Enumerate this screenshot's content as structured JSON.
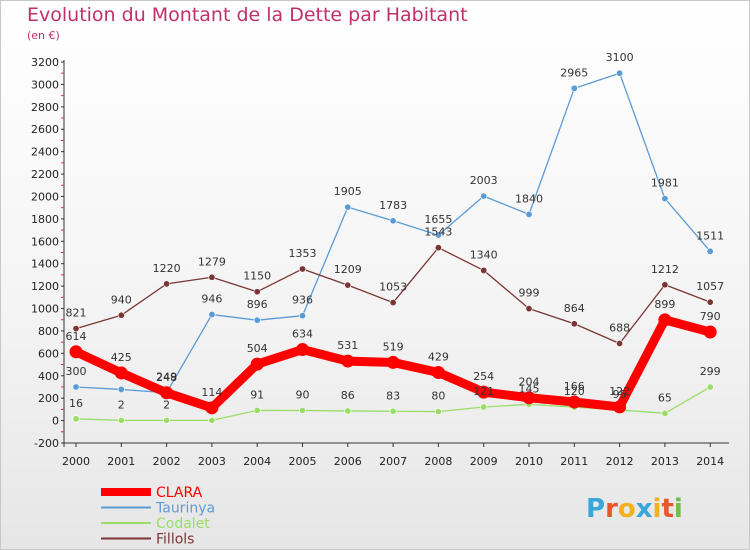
{
  "chart_data": {
    "type": "line",
    "title": "Evolution du Montant de la Dette par Habitant",
    "subtitle": "(en €)",
    "x": [
      "2000",
      "2001",
      "2002",
      "2003",
      "2004",
      "2005",
      "2006",
      "2007",
      "2008",
      "2009",
      "2010",
      "2011",
      "2012",
      "2013",
      "2014"
    ],
    "yticks": [
      -200,
      0,
      200,
      400,
      600,
      800,
      1000,
      1200,
      1400,
      1600,
      1800,
      2000,
      2200,
      2400,
      2600,
      2800,
      3000,
      3200
    ],
    "ylim": [
      -200,
      3200
    ],
    "grid": false,
    "legend_position": "bottom-left",
    "series": [
      {
        "name": "CLARA",
        "color": "#ff0000",
        "values": [
          614,
          425,
          248,
          114,
          504,
          634,
          531,
          519,
          429,
          254,
          204,
          166,
          122,
          899,
          790
        ],
        "labels": [
          "614",
          "425",
          "248",
          "114",
          "504",
          "634",
          "531",
          "519",
          "429",
          "254",
          "204",
          "166",
          "122",
          "899",
          "790"
        ]
      },
      {
        "name": "Taurinya",
        "color": "#5b9bd5",
        "values": [
          300,
          278,
          249,
          946,
          896,
          936,
          1905,
          1783,
          1655,
          2003,
          1840,
          2965,
          3100,
          1981,
          1511
        ],
        "labels": [
          "300",
          "",
          "249",
          "946",
          "896",
          "936",
          "1905",
          "1783",
          "1655",
          "2003",
          "1840",
          "2965",
          "3100",
          "1981",
          "1511"
        ]
      },
      {
        "name": "Codalet",
        "color": "#99dd66",
        "values": [
          16,
          2,
          2,
          2,
          91,
          90,
          86,
          83,
          80,
          121,
          145,
          120,
          95,
          65,
          299
        ],
        "labels": [
          "16",
          "2",
          "2",
          "",
          "91",
          "90",
          "86",
          "83",
          "80",
          "121",
          "145",
          "120",
          "95",
          "65",
          "299"
        ]
      },
      {
        "name": "Fillols",
        "color": "#7b3535",
        "values": [
          821,
          940,
          1220,
          1279,
          1150,
          1353,
          1209,
          1053,
          1543,
          1340,
          999,
          864,
          688,
          1212,
          1057
        ],
        "labels": [
          "821",
          "940",
          "1220",
          "1279",
          "1150",
          "1353",
          "1209",
          "1053",
          "1543",
          "1340",
          "999",
          "864",
          "688",
          "1212",
          "1057"
        ]
      }
    ]
  },
  "logo": {
    "text": "Proxiti",
    "colors": [
      "#e8572a",
      "#f0b21d",
      "#3aa6d9",
      "#6cc04a"
    ]
  }
}
